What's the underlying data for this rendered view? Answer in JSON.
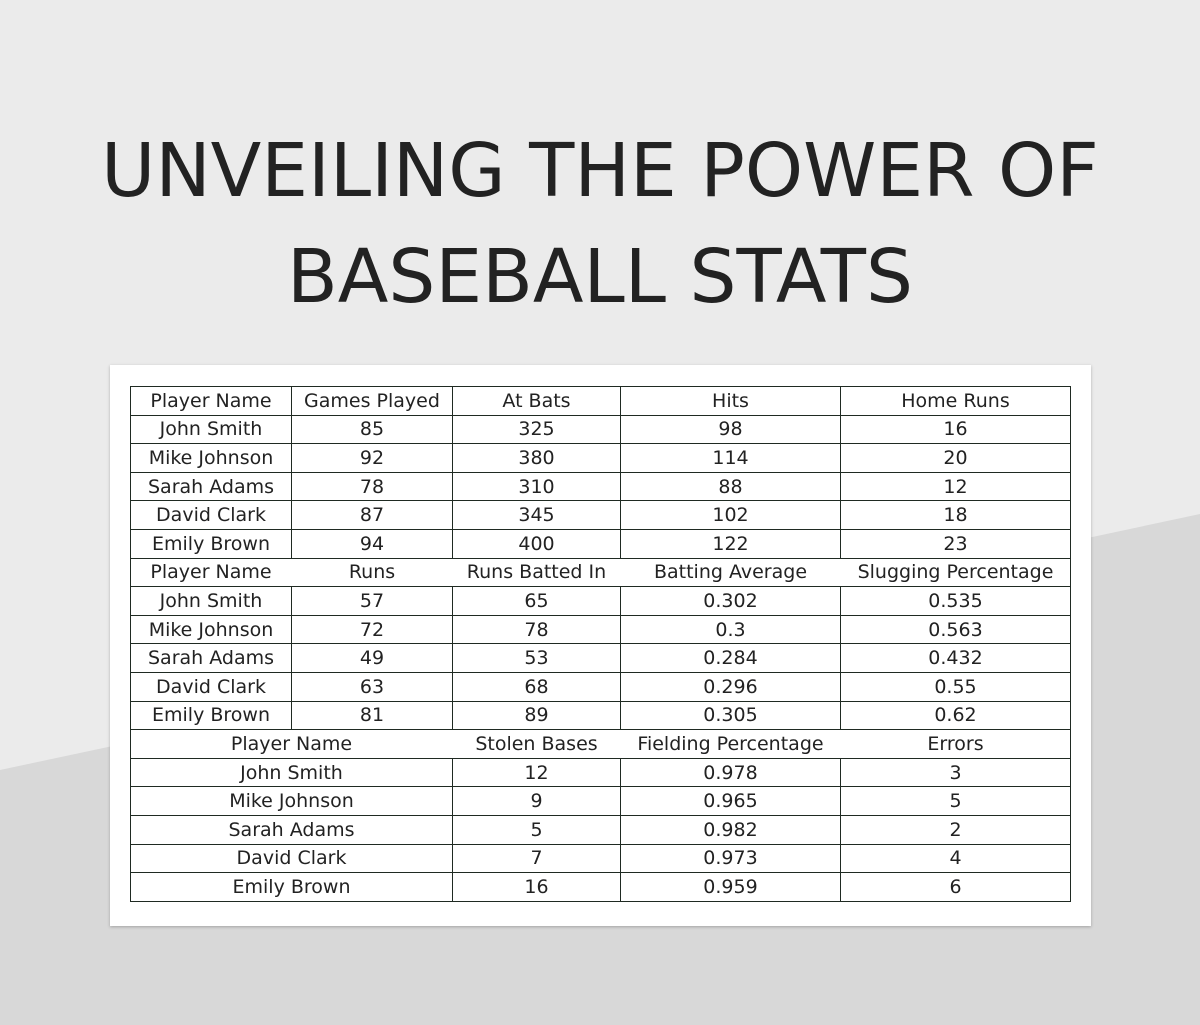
{
  "title": {
    "line1": "UNVEILING THE POWER OF",
    "line2": "BASEBALL STATS"
  },
  "table1": {
    "headers": [
      "Player Name",
      "Games Played",
      "At Bats",
      "Hits",
      "Home Runs"
    ],
    "rows": [
      [
        "John Smith",
        "85",
        "325",
        "98",
        "16"
      ],
      [
        "Mike Johnson",
        "92",
        "380",
        "114",
        "20"
      ],
      [
        "Sarah Adams",
        "78",
        "310",
        "88",
        "12"
      ],
      [
        "David Clark",
        "87",
        "345",
        "102",
        "18"
      ],
      [
        "Emily Brown",
        "94",
        "400",
        "122",
        "23"
      ]
    ]
  },
  "table2": {
    "headers": [
      "Player Name",
      "Runs",
      "Runs Batted In",
      "Batting Average",
      "Slugging Percentage"
    ],
    "rows": [
      [
        "John Smith",
        "57",
        "65",
        "0.302",
        "0.535"
      ],
      [
        "Mike Johnson",
        "72",
        "78",
        "0.3",
        "0.563"
      ],
      [
        "Sarah Adams",
        "49",
        "53",
        "0.284",
        "0.432"
      ],
      [
        "David Clark",
        "63",
        "68",
        "0.296",
        "0.55"
      ],
      [
        "Emily Brown",
        "81",
        "89",
        "0.305",
        "0.62"
      ]
    ]
  },
  "table3": {
    "headers": [
      "Player Name",
      "Stolen Bases",
      "Fielding Percentage",
      "Errors"
    ],
    "rows": [
      [
        "John Smith",
        "12",
        "0.978",
        "3"
      ],
      [
        "Mike Johnson",
        "9",
        "0.965",
        "5"
      ],
      [
        "Sarah Adams",
        "5",
        "0.982",
        "2"
      ],
      [
        "David Clark",
        "7",
        "0.973",
        "4"
      ],
      [
        "Emily Brown",
        "16",
        "0.959",
        "6"
      ]
    ]
  }
}
